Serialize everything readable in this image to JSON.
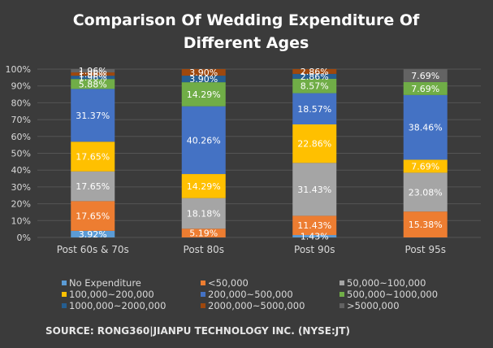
{
  "source": "SOURCE: RONG360|JIANPU TECHNOLOGY INC. (NYSE:JT)",
  "chart_data": {
    "type": "bar",
    "stacked": true,
    "title": "Comparison Of Wedding Expenditure Of Different Ages",
    "title_lines": [
      "Comparison Of Wedding Expenditure Of",
      "Different Ages"
    ],
    "categories": [
      "Post 60s & 70s",
      "Post 80s",
      "Post 90s",
      "Post 95s"
    ],
    "y_ticks": [
      "0%",
      "10%",
      "20%",
      "30%",
      "40%",
      "50%",
      "60%",
      "70%",
      "80%",
      "90%",
      "100%"
    ],
    "ylim": [
      0,
      100
    ],
    "grid": true,
    "legend_position": "bottom",
    "series": [
      {
        "name": "No Expenditure",
        "color": "#5b9bd5",
        "values": [
          3.92,
          0,
          1.43,
          0
        ],
        "labels": [
          "3.92%",
          "",
          "1.43%",
          ""
        ]
      },
      {
        "name": "<50,000",
        "color": "#ed7d31",
        "values": [
          17.65,
          5.19,
          11.43,
          15.38
        ],
        "labels": [
          "17.65%",
          "5.19%",
          "11.43%",
          "15.38%"
        ]
      },
      {
        "name": "50,000~100,000",
        "color": "#a5a5a5",
        "values": [
          17.65,
          18.18,
          31.43,
          23.08
        ],
        "labels": [
          "17.65%",
          "18.18%",
          "31.43%",
          "23.08%"
        ]
      },
      {
        "name": "100,000~200,000",
        "color": "#ffc000",
        "values": [
          17.65,
          14.29,
          22.86,
          7.69
        ],
        "labels": [
          "17.65%",
          "14.29%",
          "22.86%",
          "7.69%"
        ]
      },
      {
        "name": "200,000~500,000",
        "color": "#4472c4",
        "values": [
          31.37,
          40.26,
          18.57,
          38.46
        ],
        "labels": [
          "31.37%",
          "40.26%",
          "18.57%",
          "38.46%"
        ]
      },
      {
        "name": "500,000~1000,000",
        "color": "#70ad47",
        "values": [
          5.88,
          14.29,
          8.57,
          7.69
        ],
        "labels": [
          "5.88%",
          "14.29%",
          "8.57%",
          "7.69%"
        ]
      },
      {
        "name": "1000,000~2000,000",
        "color": "#255e91",
        "values": [
          1.96,
          3.9,
          2.86,
          0
        ],
        "labels": [
          "1.96%",
          "3.90%",
          "2.86%",
          ""
        ]
      },
      {
        "name": "2000,000~5000,000",
        "color": "#9e480e",
        "values": [
          1.96,
          3.9,
          2.86,
          0
        ],
        "labels": [
          "1.96%",
          "3.90%",
          "2.86%",
          ""
        ]
      },
      {
        "name": ">5000,000",
        "color": "#636363",
        "values": [
          1.96,
          0,
          0,
          7.69
        ],
        "labels": [
          "1.96%",
          "",
          "",
          "7.69%"
        ]
      }
    ]
  }
}
